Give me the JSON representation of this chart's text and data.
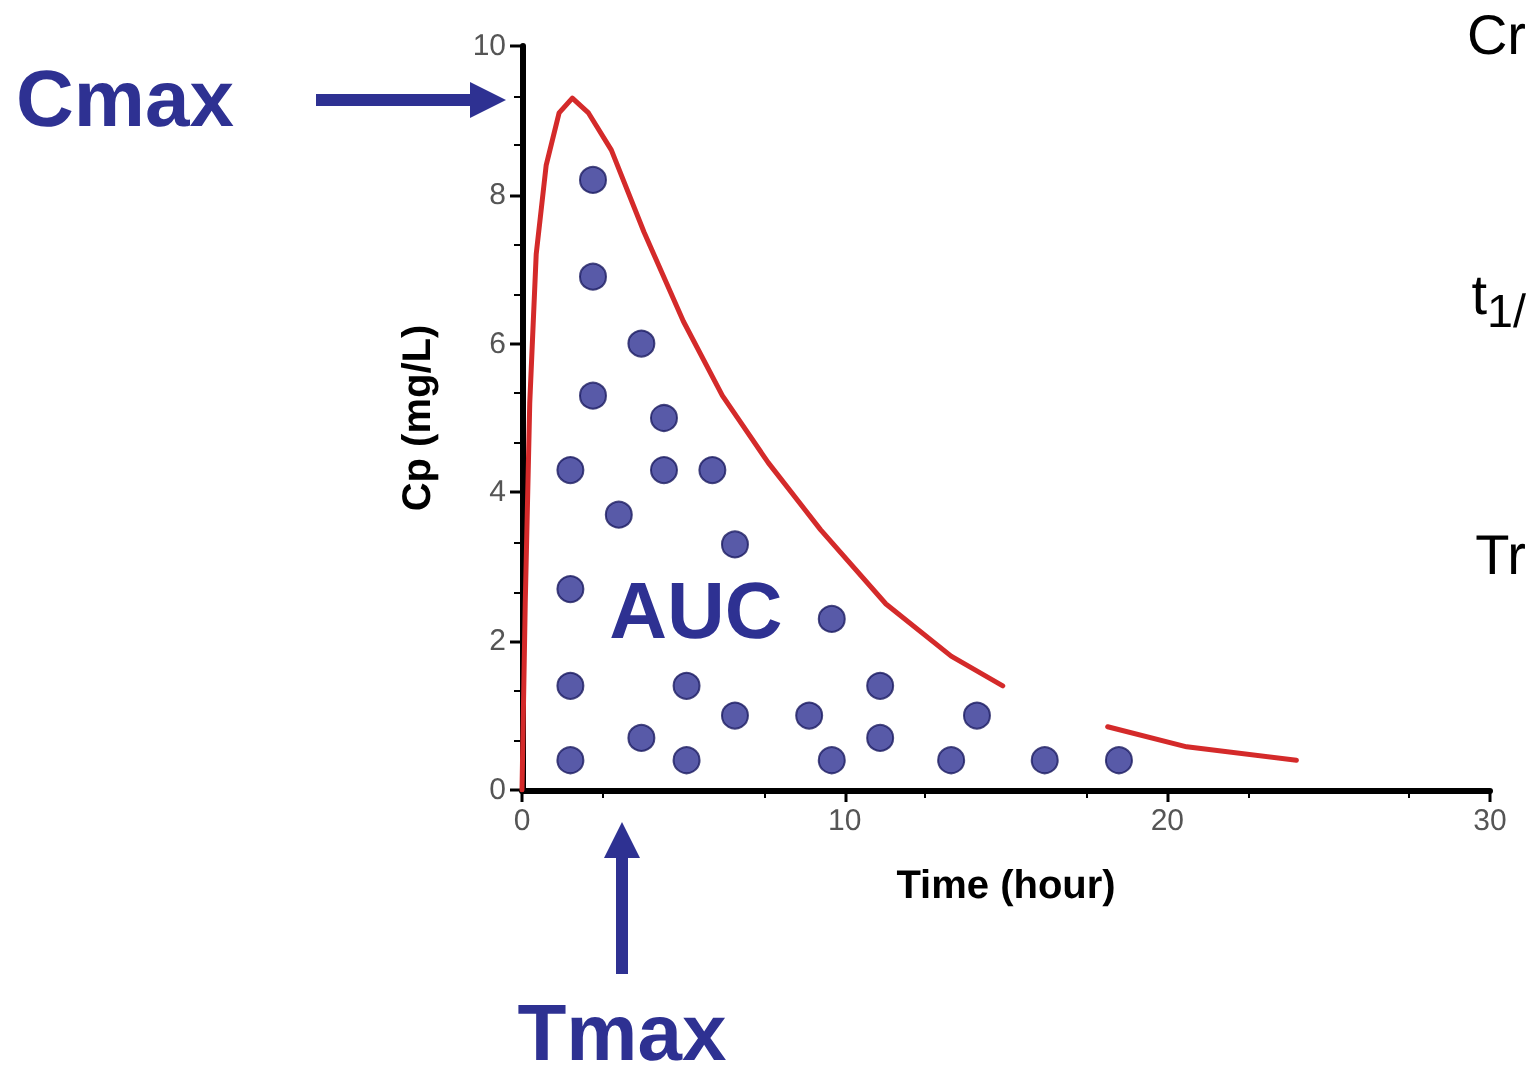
{
  "chart_data": {
    "type": "line",
    "xlabel": "Time (hour)",
    "ylabel": "Cp (mg/L)",
    "xlim": [
      0,
      30
    ],
    "xticks": [
      0,
      10,
      20,
      30
    ],
    "ylim": [
      0,
      10
    ],
    "yticks": [
      0,
      2,
      4,
      6,
      8,
      10
    ],
    "grid": false,
    "series": [
      {
        "color": "#d42a2a",
        "marker": "none",
        "x": [
          0,
          0.1,
          0.24,
          0.44,
          0.75,
          1.15,
          1.56,
          2.06,
          2.77,
          3.78,
          5.0,
          6.21,
          7.63,
          9.25,
          11.28,
          13.3,
          14.9,
          16.5,
          18.15,
          20.6,
          24.0
        ],
        "values": [
          0,
          2.5,
          5.2,
          7.2,
          8.4,
          9.1,
          9.3,
          9.1,
          8.6,
          7.5,
          6.3,
          5.3,
          4.4,
          3.5,
          2.5,
          1.8,
          1.4,
          null,
          0.85,
          0.58,
          0.4
        ]
      },
      {
        "type": "scatter",
        "color": "#2e3192",
        "marker": "circle",
        "x": [
          2.2,
          2.2,
          3.7,
          2.2,
          4.4,
          1.5,
          4.4,
          5.9,
          3.0,
          6.6,
          1.5,
          9.6,
          1.5,
          5.1,
          11.1,
          6.6,
          8.9,
          14.1,
          3.7,
          11.1,
          1.5,
          5.1,
          9.6,
          13.3,
          16.2,
          18.5
        ],
        "values": [
          8.2,
          6.9,
          6.0,
          5.3,
          5.0,
          4.3,
          4.3,
          4.3,
          3.7,
          3.3,
          2.7,
          2.3,
          1.4,
          1.4,
          1.4,
          1.0,
          1.0,
          1.0,
          0.7,
          0.7,
          0.4,
          0.4,
          0.4,
          0.4,
          0.4,
          0.4
        ]
      }
    ],
    "annotations": [
      "Cmax",
      "Tmax",
      "AUC",
      "Cr",
      "t$_{1/}$",
      "Tr"
    ]
  }
}
